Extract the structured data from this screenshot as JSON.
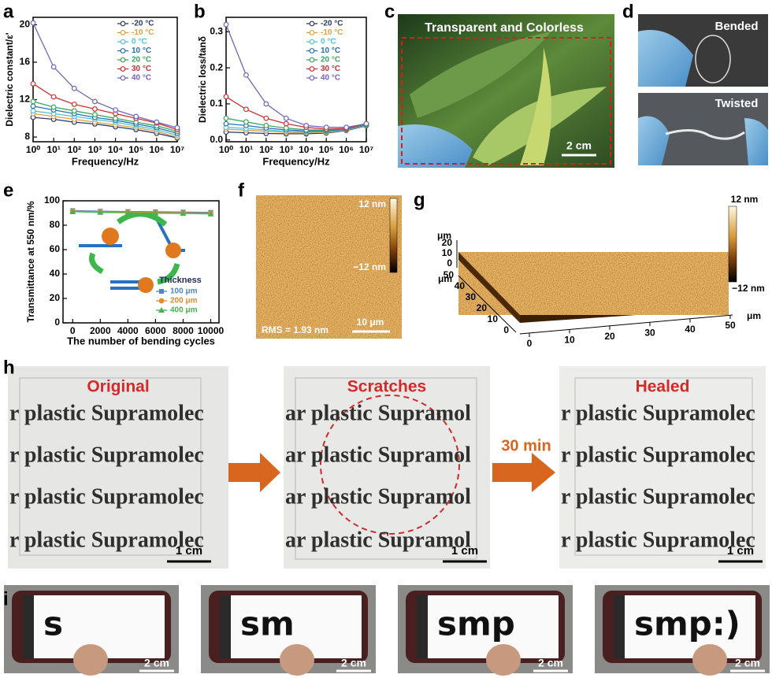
{
  "chart_data": [
    {
      "type": "line",
      "xlabel": "Frequency/Hz",
      "ylabel": "Dielectric constant/ε'",
      "x": [
        1,
        10,
        100,
        1000,
        10000,
        100000,
        1000000,
        10000000
      ],
      "xlim": [
        1,
        10000000
      ],
      "xlog": true,
      "xticks": [
        {
          "value": 1,
          "label": "10⁰"
        },
        {
          "value": 10,
          "label": "10¹"
        },
        {
          "value": 100,
          "label": "10²"
        },
        {
          "value": 1000,
          "label": "10³"
        },
        {
          "value": 10000,
          "label": "10⁴"
        },
        {
          "value": 100000,
          "label": "10⁵"
        },
        {
          "value": 1000000,
          "label": "10⁶"
        },
        {
          "value": 10000000,
          "label": "10⁷"
        }
      ],
      "ylim": [
        7.5,
        20.8
      ],
      "yticks": [
        8,
        12,
        16,
        20
      ],
      "legend": "top-right",
      "series": [
        {
          "name": "-20 °C",
          "color": "#2b3a67",
          "values": [
            10.1,
            9.9,
            9.6,
            9.4,
            9.1,
            8.8,
            8.4,
            7.9
          ]
        },
        {
          "name": "-10 °C",
          "color": "#e0a040",
          "values": [
            10.5,
            10.2,
            9.9,
            9.6,
            9.3,
            9.0,
            8.6,
            8.0
          ]
        },
        {
          "name": "0 °C",
          "color": "#4fc3e0",
          "values": [
            10.8,
            10.5,
            10.2,
            9.9,
            9.6,
            9.2,
            8.8,
            8.2
          ]
        },
        {
          "name": "10 °C",
          "color": "#2a6fb5",
          "values": [
            11.3,
            10.9,
            10.5,
            10.1,
            9.8,
            9.4,
            9.0,
            8.4
          ]
        },
        {
          "name": "20 °C",
          "color": "#3aa860",
          "values": [
            11.8,
            11.2,
            10.8,
            10.4,
            10.0,
            9.6,
            9.2,
            8.6
          ]
        },
        {
          "name": "30 °C",
          "color": "#d03030",
          "values": [
            13.7,
            12.3,
            11.5,
            11.0,
            10.5,
            10.0,
            9.5,
            8.8
          ]
        },
        {
          "name": "40 °C",
          "color": "#7266c0",
          "values": [
            20.2,
            15.5,
            13.2,
            11.8,
            10.9,
            10.2,
            9.6,
            9.0
          ]
        }
      ]
    },
    {
      "type": "line",
      "xlabel": "Frequency/Hz",
      "ylabel": "Dielectric loss/tanδ",
      "x": [
        1,
        10,
        100,
        1000,
        10000,
        100000,
        1000000,
        10000000
      ],
      "xlim": [
        1,
        10000000
      ],
      "xlog": true,
      "xticks": [
        {
          "value": 1,
          "label": "10⁰"
        },
        {
          "value": 10,
          "label": "10¹"
        },
        {
          "value": 100,
          "label": "10²"
        },
        {
          "value": 1000,
          "label": "10³"
        },
        {
          "value": 10000,
          "label": "10⁴"
        },
        {
          "value": 100000,
          "label": "10⁵"
        },
        {
          "value": 1000000,
          "label": "10⁶"
        },
        {
          "value": 10000000,
          "label": "10⁷"
        }
      ],
      "ylim": [
        -0.005,
        0.34
      ],
      "yticks": [
        {
          "value": 0,
          "label": "0.0"
        },
        0.1,
        0.2,
        0.3
      ],
      "legend": "top-right",
      "series": [
        {
          "name": "-20 °C",
          "color": "#2b3a67",
          "values": [
            0.022,
            0.02,
            0.018,
            0.017,
            0.017,
            0.019,
            0.026,
            0.039
          ]
        },
        {
          "name": "-10 °C",
          "color": "#e0a040",
          "values": [
            0.03,
            0.027,
            0.024,
            0.021,
            0.02,
            0.021,
            0.027,
            0.04
          ]
        },
        {
          "name": "0 °C",
          "color": "#4fc3e0",
          "values": [
            0.035,
            0.032,
            0.028,
            0.024,
            0.022,
            0.023,
            0.028,
            0.041
          ]
        },
        {
          "name": "10 °C",
          "color": "#2a6fb5",
          "values": [
            0.045,
            0.04,
            0.033,
            0.028,
            0.025,
            0.025,
            0.029,
            0.042
          ]
        },
        {
          "name": "20 °C",
          "color": "#3aa860",
          "values": [
            0.06,
            0.05,
            0.04,
            0.033,
            0.028,
            0.027,
            0.03,
            0.043
          ]
        },
        {
          "name": "30 °C",
          "color": "#d03030",
          "values": [
            0.12,
            0.085,
            0.06,
            0.045,
            0.035,
            0.03,
            0.032,
            0.045
          ]
        },
        {
          "name": "40 °C",
          "color": "#7266c0",
          "values": [
            0.32,
            0.18,
            0.1,
            0.06,
            0.04,
            0.035,
            0.035,
            0.045
          ]
        }
      ]
    },
    {
      "type": "line",
      "xlabel": "The number of bending cycles",
      "ylabel": "Transmittance at 550 nm/%",
      "x": [
        0,
        2000,
        4000,
        6000,
        8000,
        10000
      ],
      "xlim": [
        -700,
        10600
      ],
      "xticks": [
        0,
        2000,
        4000,
        6000,
        8000,
        10000
      ],
      "ylim": [
        0,
        100
      ],
      "yticks": [
        0,
        20,
        40,
        60,
        80,
        100
      ],
      "legend": "bottom-right",
      "legend_title": "Thickness",
      "series": [
        {
          "name": "100 μm",
          "color": "#4a86c5",
          "marker": "square",
          "values": [
            92,
            91.5,
            91.2,
            91,
            90.8,
            90.5
          ]
        },
        {
          "name": "200 μm",
          "color": "#e68a2e",
          "marker": "circle",
          "values": [
            91.5,
            91,
            90.7,
            90.4,
            90.1,
            89.8
          ]
        },
        {
          "name": "400 μm",
          "color": "#4caf50",
          "marker": "triangle",
          "values": [
            91,
            90.5,
            90.2,
            89.9,
            89.6,
            89.2
          ]
        }
      ]
    }
  ],
  "panel_labels": [
    "a",
    "b",
    "c",
    "d",
    "e",
    "f",
    "g",
    "h",
    "i"
  ],
  "photo_c": {
    "caption": "Transparent and Colorless",
    "scale": "2 cm"
  },
  "photo_d": {
    "top": "Bended",
    "bottom": "Twisted"
  },
  "afm_f": {
    "max": "12 nm",
    "min": "−12 nm",
    "rms": "RMS = 1.93 nm",
    "scale": "10 μm"
  },
  "afm_g": {
    "max": "12 nm",
    "min": "−12 nm",
    "unit": "μm",
    "x_ticks": [
      "0",
      "10",
      "20",
      "30",
      "40",
      "50"
    ],
    "y_ticks": [
      "0",
      "10",
      "20",
      "30",
      "40",
      "50"
    ],
    "z_ticks": [
      "0",
      "10",
      "20"
    ]
  },
  "healing": {
    "time": "30 min",
    "stages": [
      {
        "title": "Original",
        "scale": "1 cm",
        "line": "r plastic Supramolec"
      },
      {
        "title": "Scratches",
        "scale": "1 cm",
        "line": "ar plastic Supramol"
      },
      {
        "title": "Healed",
        "scale": "1 cm",
        "line": "r plastic Supramolec"
      }
    ]
  },
  "writing": [
    {
      "text": "s",
      "scale": "2 cm"
    },
    {
      "text": "sm",
      "scale": "2 cm"
    },
    {
      "text": "smp",
      "scale": "2 cm"
    },
    {
      "text": "smp:)",
      "scale": "2 cm"
    }
  ]
}
